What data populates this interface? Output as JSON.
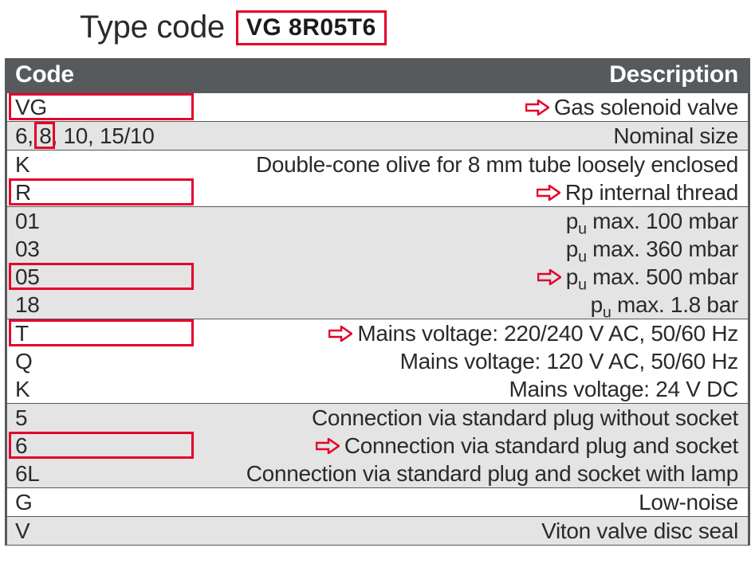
{
  "colors": {
    "header_bg": "#565a5c",
    "header_text": "#ffffff",
    "row_grey": "#e4e4e4",
    "row_white": "#ffffff",
    "text": "#2a2a2a",
    "highlight": "#e4002b",
    "border": "#565a5c"
  },
  "title": {
    "label": "Type code",
    "code": "VG 8R05T6",
    "title_fontsize": 40,
    "code_fontsize": 30
  },
  "header": {
    "col1": "Code",
    "col2": "Description",
    "fontsize": 30
  },
  "row_fontsize": 28,
  "groups": [
    {
      "bg": "white",
      "rows": [
        {
          "code": "VG",
          "desc": "Gas solenoid valve",
          "highlight_code": true,
          "arrow": true
        }
      ]
    },
    {
      "bg": "grey",
      "rows": [
        {
          "code": "6, 8, 10, 15/10",
          "desc": "Nominal size",
          "highlight_inner": "8"
        }
      ]
    },
    {
      "bg": "white",
      "rows": [
        {
          "code": "K",
          "desc": "Double-cone olive for 8 mm tube loosely enclosed"
        },
        {
          "code": "R",
          "desc": "Rp internal thread",
          "highlight_code": true,
          "arrow": true
        }
      ]
    },
    {
      "bg": "grey",
      "rows": [
        {
          "code": "01",
          "desc_html": "p<sub>u</sub> max. 100 mbar"
        },
        {
          "code": "03",
          "desc_html": "p<sub>u</sub> max. 360 mbar"
        },
        {
          "code": "05",
          "desc_html": "p<sub>u</sub> max. 500 mbar",
          "highlight_code": true,
          "arrow": true
        },
        {
          "code": "18",
          "desc_html": "p<sub>u</sub> max. 1.8 bar"
        }
      ]
    },
    {
      "bg": "white",
      "rows": [
        {
          "code": "T",
          "desc": "Mains voltage: 220/240 V AC, 50/60 Hz",
          "highlight_code": true,
          "arrow": true
        },
        {
          "code": "Q",
          "desc": "Mains voltage: 120 V AC, 50/60 Hz"
        },
        {
          "code": "K",
          "desc": "Mains voltage: 24 V DC"
        }
      ]
    },
    {
      "bg": "grey",
      "rows": [
        {
          "code": "5",
          "desc": "Connection via standard plug without socket"
        },
        {
          "code": "6",
          "desc": "Connection via standard plug and socket",
          "highlight_code": true,
          "arrow": true
        },
        {
          "code": "6L",
          "desc": "Connection via standard plug and socket with lamp"
        }
      ]
    },
    {
      "bg": "white",
      "rows": [
        {
          "code": "G",
          "desc": "Low-noise"
        }
      ]
    },
    {
      "bg": "grey",
      "rows": [
        {
          "code": "V",
          "desc": "Viton valve disc seal"
        }
      ]
    }
  ]
}
